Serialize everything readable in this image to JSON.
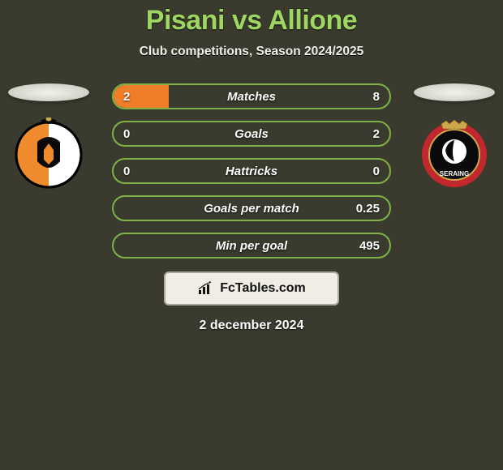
{
  "title": "Pisani vs Allione",
  "subtitle": "Club competitions, Season 2024/2025",
  "date": "2 december 2024",
  "attribution": "FcTables.com",
  "colors": {
    "background": "#3a3a2e",
    "title": "#9ed663",
    "bar_left_fill": "#f07d28",
    "bar_border": "#7fb347",
    "attrib_bg": "#f0ede4",
    "attrib_border": "#a8a89c"
  },
  "bars": {
    "track_width": 344,
    "height": 32,
    "border_radius": 16,
    "border_width": 2,
    "gap": 14
  },
  "stats": [
    {
      "label": "Matches",
      "left_val": "2",
      "right_val": "8",
      "left_pct": 20,
      "right_pct": 0
    },
    {
      "label": "Goals",
      "left_val": "0",
      "right_val": "2",
      "left_pct": 0,
      "right_pct": 0
    },
    {
      "label": "Hattricks",
      "left_val": "0",
      "right_val": "0",
      "left_pct": 0,
      "right_pct": 0
    },
    {
      "label": "Goals per match",
      "left_val": "",
      "right_val": "0.25",
      "left_pct": 0,
      "right_pct": 0
    },
    {
      "label": "Min per goal",
      "left_val": "",
      "right_val": "495",
      "left_pct": 0,
      "right_pct": 0
    }
  ],
  "crests": {
    "left": {
      "name": "deinze-crest",
      "shape": "circle",
      "colors": {
        "top": "#0a0a0a",
        "left_half": "#ef8b2d",
        "right_half": "#ffffff",
        "outline": "#000"
      }
    },
    "right": {
      "name": "seraing-crest",
      "shape": "circle",
      "colors": {
        "outer": "#c1272d",
        "inner": "#0a0a0a",
        "ring": "#c9a94a",
        "text": "#ffffff"
      },
      "text": "SERAING"
    }
  }
}
